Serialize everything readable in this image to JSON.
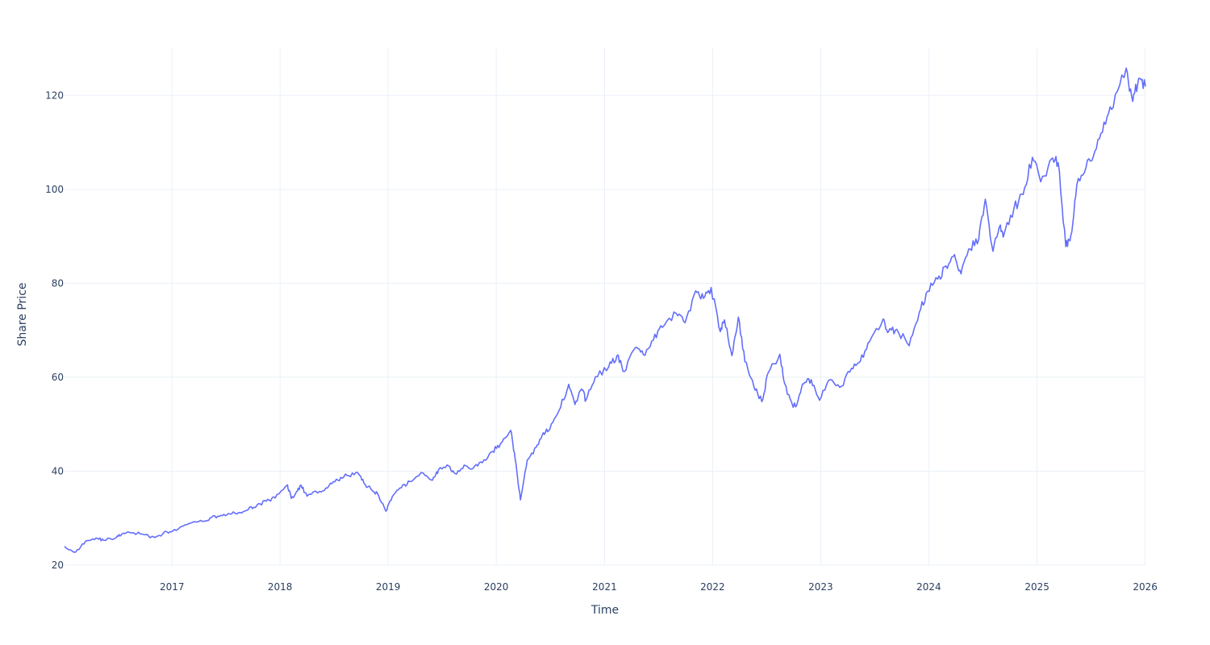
{
  "chart_data": {
    "type": "line",
    "title": "",
    "xlabel": "Time",
    "ylabel": "Share Price",
    "xlim": [
      "2016-01-04",
      "2026-01-02"
    ],
    "ylim": [
      20,
      130
    ],
    "grid": true,
    "legend": "none",
    "colors": {
      "line": "#636efa",
      "grid": "#ebf0f8",
      "text": "#2a3f5f"
    },
    "x_ticks": [
      "2017",
      "2018",
      "2019",
      "2020",
      "2021",
      "2022",
      "2023",
      "2024",
      "2025",
      "2026"
    ],
    "y_ticks": [
      20,
      40,
      60,
      80,
      100,
      120
    ],
    "series": [
      {
        "x": [
          "2016-01-04",
          "2016-02-11",
          "2016-03-15",
          "2016-04-20",
          "2016-05-15",
          "2016-06-27",
          "2016-07-15",
          "2016-08-15",
          "2016-09-15",
          "2016-11-04",
          "2016-12-15",
          "2017-01-15",
          "2017-03-01",
          "2017-04-15",
          "2017-05-15",
          "2017-06-15",
          "2017-07-15",
          "2017-08-20",
          "2017-09-15",
          "2017-10-15",
          "2017-11-15",
          "2017-12-15",
          "2018-01-26",
          "2018-02-08",
          "2018-03-01",
          "2018-03-13",
          "2018-04-02",
          "2018-05-15",
          "2018-06-15",
          "2018-07-15",
          "2018-08-15",
          "2018-09-20",
          "2018-10-11",
          "2018-11-08",
          "2018-11-25",
          "2018-12-24",
          "2019-01-15",
          "2019-02-15",
          "2019-03-15",
          "2019-04-30",
          "2019-05-31",
          "2019-06-20",
          "2019-07-25",
          "2019-08-15",
          "2019-09-15",
          "2019-10-15",
          "2019-11-15",
          "2019-12-20",
          "2020-01-15",
          "2020-02-19",
          "2020-03-05",
          "2020-03-23",
          "2020-04-15",
          "2020-05-15",
          "2020-06-08",
          "2020-06-30",
          "2020-07-31",
          "2020-09-02",
          "2020-09-23",
          "2020-10-15",
          "2020-10-30",
          "2020-12-01",
          "2021-01-15",
          "2021-02-12",
          "2021-03-08",
          "2021-04-15",
          "2021-05-12",
          "2021-06-15",
          "2021-07-15",
          "2021-08-31",
          "2021-09-30",
          "2021-11-05",
          "2021-12-01",
          "2021-12-27",
          "2022-01-27",
          "2022-02-10",
          "2022-03-07",
          "2022-03-29",
          "2022-04-20",
          "2022-05-20",
          "2022-06-16",
          "2022-07-08",
          "2022-08-16",
          "2022-09-01",
          "2022-09-30",
          "2022-10-14",
          "2022-11-04",
          "2022-11-30",
          "2022-12-28",
          "2023-02-02",
          "2023-03-13",
          "2023-04-15",
          "2023-05-15",
          "2023-06-15",
          "2023-07-31",
          "2023-08-18",
          "2023-09-15",
          "2023-10-27",
          "2023-11-30",
          "2023-12-28",
          "2024-01-31",
          "2024-02-28",
          "2024-03-28",
          "2024-04-19",
          "2024-05-20",
          "2024-06-18",
          "2024-07-10",
          "2024-08-05",
          "2024-08-30",
          "2024-09-10",
          "2024-10-15",
          "2024-11-15",
          "2024-12-16",
          "2025-01-13",
          "2025-02-19",
          "2025-03-13",
          "2025-04-08",
          "2025-04-25",
          "2025-05-15",
          "2025-06-15",
          "2025-07-15",
          "2025-08-15",
          "2025-09-15",
          "2025-10-29",
          "2025-11-20",
          "2025-12-10",
          "2026-01-02"
        ],
        "y": [
          24.0,
          22.8,
          25.1,
          25.8,
          25.3,
          25.9,
          26.6,
          26.9,
          26.7,
          25.9,
          27.1,
          27.4,
          28.9,
          29.3,
          30.2,
          30.6,
          30.9,
          31.2,
          31.8,
          32.8,
          33.6,
          34.3,
          37.1,
          34.2,
          35.8,
          37.0,
          34.7,
          35.7,
          36.9,
          38.1,
          39.1,
          39.7,
          37.5,
          35.9,
          35.4,
          31.5,
          34.6,
          36.5,
          37.8,
          39.6,
          38.1,
          40.3,
          41.1,
          39.5,
          41.3,
          40.6,
          41.8,
          44.2,
          45.8,
          48.7,
          42.6,
          33.9,
          42.4,
          45.1,
          48.2,
          48.9,
          52.9,
          58.5,
          54.2,
          57.5,
          55.1,
          60.1,
          62.2,
          64.6,
          61.2,
          66.3,
          64.8,
          67.9,
          70.6,
          73.6,
          71.6,
          78.4,
          76.8,
          79.1,
          69.7,
          72.2,
          64.6,
          72.8,
          63.3,
          58.1,
          54.8,
          61.0,
          64.9,
          58.7,
          53.6,
          54.5,
          58.6,
          59.5,
          55.1,
          59.5,
          58.1,
          61.9,
          63.4,
          67.6,
          72.4,
          69.7,
          70.2,
          66.7,
          73.8,
          78.3,
          80.9,
          83.7,
          86.1,
          82.0,
          87.3,
          89.4,
          97.9,
          86.8,
          92.4,
          90.1,
          96.0,
          98.9,
          106.8,
          101.6,
          106.5,
          105.7,
          87.8,
          90.2,
          100.9,
          104.6,
          108.1,
          114.3,
          117.4,
          125.8,
          118.7,
          123.6,
          121.9
        ]
      }
    ]
  }
}
